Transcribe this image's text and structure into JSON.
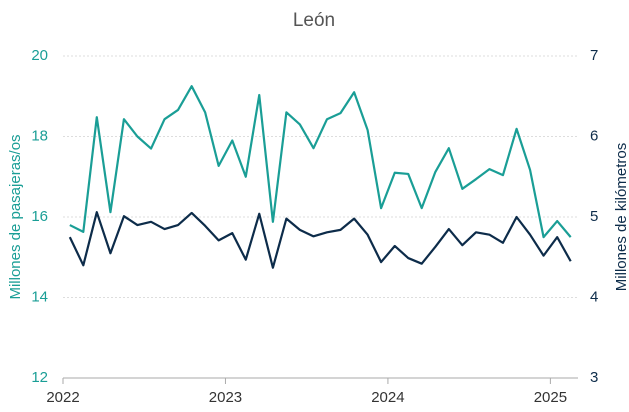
{
  "chart_data": {
    "type": "line",
    "title": "León",
    "ylabel": "Millones de pasajeras/os",
    "y2label": "Millones de kilómetros",
    "x": [
      2022.042,
      2022.125,
      2022.208,
      2022.292,
      2022.375,
      2022.458,
      2022.542,
      2022.625,
      2022.708,
      2022.792,
      2022.875,
      2022.958,
      2023.042,
      2023.125,
      2023.208,
      2023.292,
      2023.375,
      2023.458,
      2023.542,
      2023.625,
      2023.708,
      2023.792,
      2023.875,
      2023.958,
      2024.042,
      2024.125,
      2024.208,
      2024.292,
      2024.375,
      2024.458,
      2024.542,
      2024.625,
      2024.708,
      2024.792,
      2024.875,
      2024.958,
      2025.042,
      2025.125
    ],
    "xlim": [
      2022,
      2025.17
    ],
    "xticks": [
      2022,
      2023,
      2024,
      2025
    ],
    "ylim": [
      12,
      20
    ],
    "yticks": [
      12,
      14,
      16,
      18,
      20
    ],
    "y2lim": [
      3,
      7
    ],
    "y2ticks": [
      3,
      4,
      5,
      6,
      7
    ],
    "grid": true,
    "series": [
      {
        "name": "Millones de pasajeras/os",
        "color": "#1a9e96",
        "axis": "y",
        "values": [
          15.8,
          15.63,
          18.48,
          16.12,
          18.43,
          18.0,
          17.7,
          18.43,
          18.66,
          19.25,
          18.6,
          17.27,
          17.9,
          17.0,
          19.03,
          15.88,
          18.6,
          18.3,
          17.71,
          18.43,
          18.58,
          19.1,
          18.16,
          16.22,
          17.1,
          17.07,
          16.22,
          17.12,
          17.71,
          16.7,
          16.94,
          17.19,
          17.04,
          18.19,
          17.17,
          15.5,
          15.9,
          15.5
        ]
      },
      {
        "name": "Millones de kilómetros",
        "color": "#0d2c4a",
        "axis": "y2",
        "values": [
          4.75,
          4.4,
          5.06,
          4.55,
          5.01,
          4.9,
          4.94,
          4.85,
          4.9,
          5.05,
          4.89,
          4.71,
          4.8,
          4.47,
          5.04,
          4.37,
          4.98,
          4.84,
          4.76,
          4.81,
          4.84,
          4.98,
          4.78,
          4.44,
          4.64,
          4.49,
          4.42,
          4.63,
          4.85,
          4.65,
          4.81,
          4.78,
          4.68,
          5.0,
          4.78,
          4.52,
          4.75,
          4.45
        ]
      }
    ]
  }
}
